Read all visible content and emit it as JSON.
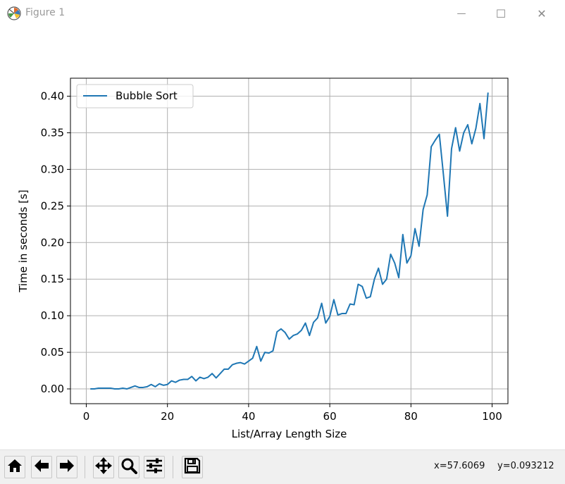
{
  "window": {
    "title": "Figure 1",
    "minimize_glyph": "—",
    "maximize_glyph": "☐",
    "close_glyph": "✕"
  },
  "toolbar": {
    "buttons": [
      {
        "name": "home-button",
        "icon": "home-icon"
      },
      {
        "name": "back-button",
        "icon": "arrow-left-icon"
      },
      {
        "name": "forward-button",
        "icon": "arrow-right-icon"
      },
      {
        "name": "pan-button",
        "icon": "move-arrows-icon"
      },
      {
        "name": "zoom-button",
        "icon": "magnifier-icon"
      },
      {
        "name": "subplots-button",
        "icon": "sliders-icon"
      },
      {
        "name": "save-button",
        "icon": "floppy-disk-icon"
      }
    ],
    "x_readout": "x=57.6069",
    "y_readout": "y=0.093212"
  },
  "chart_data": {
    "type": "line",
    "title": "",
    "xlabel": "List/Array Length Size",
    "ylabel": "Time in seconds [s]",
    "xlim": [
      -3.9,
      103.9
    ],
    "ylim": [
      -0.0202,
      0.4246
    ],
    "xticks": [
      0,
      20,
      40,
      60,
      80,
      100
    ],
    "yticks": [
      0.0,
      0.05,
      0.1,
      0.15,
      0.2,
      0.25,
      0.3,
      0.35,
      0.4
    ],
    "xtick_labels": [
      "0",
      "20",
      "40",
      "60",
      "80",
      "100"
    ],
    "ytick_labels": [
      "0.00",
      "0.05",
      "0.10",
      "0.15",
      "0.20",
      "0.25",
      "0.30",
      "0.35",
      "0.40"
    ],
    "grid": true,
    "legend_position": "top-left",
    "series": [
      {
        "name": "Bubble Sort",
        "color": "#1f77b4",
        "x": [
          1,
          2,
          3,
          4,
          5,
          6,
          7,
          8,
          9,
          10,
          11,
          12,
          13,
          14,
          15,
          16,
          17,
          18,
          19,
          20,
          21,
          22,
          23,
          24,
          25,
          26,
          27,
          28,
          29,
          30,
          31,
          32,
          33,
          34,
          35,
          36,
          37,
          38,
          39,
          40,
          41,
          42,
          43,
          44,
          45,
          46,
          47,
          48,
          49,
          50,
          51,
          52,
          53,
          54,
          55,
          56,
          57,
          58,
          59,
          60,
          61,
          62,
          63,
          64,
          65,
          66,
          67,
          68,
          69,
          70,
          71,
          72,
          73,
          74,
          75,
          76,
          77,
          78,
          79,
          80,
          81,
          82,
          83,
          84,
          85,
          86,
          87,
          88,
          89,
          90,
          91,
          92,
          93,
          94,
          95,
          96,
          97,
          98,
          99
        ],
        "y": [
          0.0,
          0.0,
          0.001,
          0.001,
          0.001,
          0.001,
          0.0,
          0.0,
          0.001,
          0.0,
          0.002,
          0.004,
          0.002,
          0.002,
          0.003,
          0.006,
          0.003,
          0.007,
          0.005,
          0.006,
          0.011,
          0.009,
          0.012,
          0.013,
          0.013,
          0.017,
          0.011,
          0.016,
          0.014,
          0.016,
          0.021,
          0.015,
          0.021,
          0.027,
          0.027,
          0.033,
          0.035,
          0.036,
          0.034,
          0.038,
          0.042,
          0.058,
          0.038,
          0.05,
          0.049,
          0.052,
          0.078,
          0.082,
          0.077,
          0.068,
          0.073,
          0.075,
          0.08,
          0.09,
          0.073,
          0.091,
          0.097,
          0.117,
          0.09,
          0.099,
          0.122,
          0.101,
          0.103,
          0.103,
          0.116,
          0.115,
          0.143,
          0.14,
          0.124,
          0.126,
          0.15,
          0.165,
          0.143,
          0.15,
          0.184,
          0.172,
          0.152,
          0.211,
          0.172,
          0.182,
          0.219,
          0.195,
          0.245,
          0.265,
          0.331,
          0.34,
          0.348,
          0.293,
          0.236,
          0.328,
          0.357,
          0.325,
          0.35,
          0.361,
          0.335,
          0.356,
          0.39,
          0.342,
          0.405
        ]
      }
    ]
  }
}
